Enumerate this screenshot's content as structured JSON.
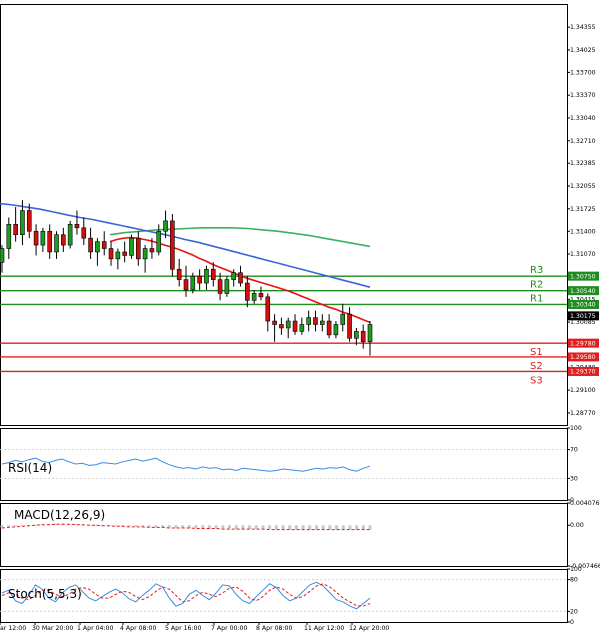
{
  "chart_data": [
    {
      "type": "candlestick",
      "ylim": [
        1.28595,
        1.3469
      ],
      "y_ticks": [
        "1.34355",
        "1.34025",
        "1.33700",
        "1.33370",
        "1.33040",
        "1.32710",
        "1.32385",
        "1.32055",
        "1.31725",
        "1.31400",
        "1.31070",
        "1.30415",
        "1.30085",
        "1.29430",
        "1.29100",
        "1.28770"
      ],
      "candles": [
        [
          1.3095,
          1.312,
          1.308,
          1.3115
        ],
        [
          1.3115,
          1.316,
          1.31,
          1.315
        ],
        [
          1.315,
          1.3175,
          1.3125,
          1.3135
        ],
        [
          1.3135,
          1.3185,
          1.312,
          1.317
        ],
        [
          1.317,
          1.318,
          1.313,
          1.314
        ],
        [
          1.314,
          1.315,
          1.3105,
          1.312
        ],
        [
          1.312,
          1.3145,
          1.311,
          1.314
        ],
        [
          1.314,
          1.315,
          1.31,
          1.311
        ],
        [
          1.311,
          1.314,
          1.31,
          1.3135
        ],
        [
          1.3135,
          1.3145,
          1.311,
          1.312
        ],
        [
          1.312,
          1.3155,
          1.3115,
          1.315
        ],
        [
          1.315,
          1.317,
          1.3135,
          1.3145
        ],
        [
          1.3145,
          1.316,
          1.312,
          1.313
        ],
        [
          1.313,
          1.3145,
          1.31,
          1.311
        ],
        [
          1.311,
          1.313,
          1.309,
          1.3125
        ],
        [
          1.3125,
          1.314,
          1.3105,
          1.3115
        ],
        [
          1.3115,
          1.3125,
          1.309,
          1.31
        ],
        [
          1.31,
          1.3115,
          1.3085,
          1.311
        ],
        [
          1.311,
          1.3125,
          1.3095,
          1.3105
        ],
        [
          1.3105,
          1.3135,
          1.31,
          1.313
        ],
        [
          1.313,
          1.314,
          1.309,
          1.31
        ],
        [
          1.31,
          1.312,
          1.308,
          1.3115
        ],
        [
          1.3115,
          1.313,
          1.31,
          1.311
        ],
        [
          1.311,
          1.315,
          1.3105,
          1.314
        ],
        [
          1.314,
          1.317,
          1.313,
          1.3155
        ],
        [
          1.3155,
          1.3165,
          1.3075,
          1.3085
        ],
        [
          1.3085,
          1.31,
          1.306,
          1.307
        ],
        [
          1.307,
          1.309,
          1.3045,
          1.3055
        ],
        [
          1.3055,
          1.308,
          1.305,
          1.3075
        ],
        [
          1.3075,
          1.3085,
          1.3055,
          1.3065
        ],
        [
          1.3065,
          1.309,
          1.3055,
          1.3085
        ],
        [
          1.3085,
          1.3095,
          1.306,
          1.307
        ],
        [
          1.307,
          1.308,
          1.304,
          1.305
        ],
        [
          1.305,
          1.3075,
          1.3045,
          1.307
        ],
        [
          1.307,
          1.3085,
          1.306,
          1.308
        ],
        [
          1.308,
          1.309,
          1.306,
          1.3065
        ],
        [
          1.3065,
          1.3075,
          1.303,
          1.304
        ],
        [
          1.304,
          1.3055,
          1.3035,
          1.305
        ],
        [
          1.305,
          1.306,
          1.304,
          1.3045
        ],
        [
          1.3045,
          1.305,
          1.2995,
          1.301
        ],
        [
          1.301,
          1.302,
          1.298,
          1.3005
        ],
        [
          1.3005,
          1.3015,
          1.299,
          1.3
        ],
        [
          1.3,
          1.3015,
          1.2985,
          1.301
        ],
        [
          1.301,
          1.302,
          1.299,
          1.2995
        ],
        [
          1.2995,
          1.3015,
          1.299,
          1.3005
        ],
        [
          1.3005,
          1.3025,
          1.2995,
          1.3015
        ],
        [
          1.3015,
          1.3025,
          1.2995,
          1.3005
        ],
        [
          1.3005,
          1.302,
          1.2995,
          1.301
        ],
        [
          1.301,
          1.302,
          1.2985,
          1.299
        ],
        [
          1.299,
          1.301,
          1.2985,
          1.3005
        ],
        [
          1.3005,
          1.3035,
          1.2995,
          1.302
        ],
        [
          1.302,
          1.303,
          1.298,
          1.2985
        ],
        [
          1.2985,
          1.3,
          1.2975,
          1.2995
        ],
        [
          1.2995,
          1.3005,
          1.297,
          1.298
        ],
        [
          1.298,
          1.301,
          1.296,
          1.3005
        ]
      ],
      "ma_red": [
        1.3125,
        1.3128,
        1.313,
        1.3131,
        1.313,
        1.3128,
        1.3126,
        1.3123,
        1.312,
        1.3117,
        1.3114,
        1.311,
        1.3106,
        1.3101,
        1.3097,
        1.3092,
        1.3088,
        1.3084,
        1.308,
        1.3076,
        1.3072,
        1.3069,
        1.3066,
        1.3063,
        1.306,
        1.3057,
        1.3054,
        1.305,
        1.3046,
        1.3042,
        1.3038,
        1.3034,
        1.303,
        1.3027,
        1.3023,
        1.302,
        1.3016,
        1.3012,
        1.3008
      ],
      "ma_blue": [
        1.318,
        1.3178,
        1.3175,
        1.3172,
        1.3168,
        1.3164,
        1.316,
        1.3157,
        1.3153,
        1.3149,
        1.3145,
        1.3141,
        1.3137,
        1.3133,
        1.3128,
        1.3124,
        1.3119,
        1.3114,
        1.3109,
        1.3104,
        1.3099,
        1.3094,
        1.3089,
        1.3084,
        1.3079,
        1.3074,
        1.3069,
        1.3064,
        1.3059
      ],
      "ma_green": [
        1.3135,
        1.3138,
        1.314,
        1.3142,
        1.3143,
        1.3144,
        1.3145,
        1.3145,
        1.3145,
        1.3144,
        1.3142,
        1.314,
        1.3137,
        1.3134,
        1.313,
        1.3126,
        1.3122,
        1.3118
      ],
      "levels": [
        {
          "name": "R3",
          "value": "1.30750",
          "color": "#1e8c1e"
        },
        {
          "name": "R2",
          "value": "1.30540",
          "color": "#1e8c1e"
        },
        {
          "name": "R1",
          "value": "1.30340",
          "color": "#1e8c1e"
        },
        {
          "name": "S1",
          "value": "1.29780",
          "color": "#e02020"
        },
        {
          "name": "S2",
          "value": "1.29580",
          "color": "#e02020"
        },
        {
          "name": "S3",
          "value": "1.29370",
          "color": "#e02020"
        }
      ],
      "current_price": "1.30175"
    },
    {
      "type": "line",
      "title": "RSI(14)",
      "ylim": [
        0,
        100
      ],
      "y_ticks": [
        "100",
        "70",
        "30",
        "0"
      ],
      "values": [
        50,
        52,
        55,
        53,
        56,
        58,
        54,
        52,
        55,
        57,
        53,
        50,
        51,
        48,
        49,
        52,
        51,
        50,
        53,
        55,
        57,
        54,
        56,
        58,
        53,
        49,
        46,
        44,
        45,
        43,
        46,
        44,
        45,
        42,
        43,
        41,
        44,
        43,
        42,
        41,
        40,
        41,
        43,
        42,
        41,
        40,
        42,
        44,
        43,
        45,
        44,
        46,
        42,
        40,
        44,
        47
      ]
    },
    {
      "type": "bar",
      "title": "MACD(12,26,9)",
      "ylim": [
        -0.007466,
        0.004076
      ],
      "y_ticks": [
        "0.004076",
        "0.00",
        "-0.007466"
      ],
      "values": [
        -0.0004,
        -0.0003,
        -0.0002,
        -0.0001,
        0.0,
        0.0001,
        0.0002,
        0.0002,
        0.0003,
        0.0003,
        0.0002,
        0.0002,
        0.0001,
        0.0001,
        0.0,
        0.0,
        -0.0001,
        -0.0001,
        -0.0002,
        -0.0002,
        -0.0003,
        -0.0003,
        -0.0003,
        -0.0004,
        -0.0004,
        -0.0004,
        -0.0005,
        -0.0005,
        -0.0005,
        -0.0005,
        -0.0006,
        -0.0006,
        -0.0006,
        -0.0006,
        -0.0006,
        -0.0007,
        -0.0007,
        -0.0007,
        -0.0007,
        -0.0007,
        -0.0007,
        -0.0008,
        -0.0008,
        -0.0008,
        -0.0008,
        -0.0008,
        -0.0008,
        -0.0008,
        -0.0008,
        -0.0008,
        -0.0008,
        -0.0008,
        -0.0008,
        -0.0008,
        -0.0008,
        -0.0008
      ],
      "signal": [
        -0.0005,
        -0.0004,
        -0.0003,
        -0.0002,
        -0.0001,
        0.0,
        0.0001,
        0.0001,
        0.0002,
        0.0002,
        0.0002,
        0.0001,
        0.0001,
        0.0,
        0.0,
        -0.0001,
        -0.0001,
        -0.0002,
        -0.0002,
        -0.0003,
        -0.0003,
        -0.0003,
        -0.0004,
        -0.0004,
        -0.0004,
        -0.0005,
        -0.0005,
        -0.0005,
        -0.0005,
        -0.0006,
        -0.0006,
        -0.0006,
        -0.0006,
        -0.0007,
        -0.0007,
        -0.0007,
        -0.0007,
        -0.0007,
        -0.0007,
        -0.0007,
        -0.0008,
        -0.0008,
        -0.0008,
        -0.0008,
        -0.0008,
        -0.0008,
        -0.0008,
        -0.0008,
        -0.0008,
        -0.0008,
        -0.0008,
        -0.0008,
        -0.0008,
        -0.0008,
        -0.0008,
        -0.0008
      ]
    },
    {
      "type": "line",
      "title": "Stoch(5,5,3)",
      "ylim": [
        0,
        100
      ],
      "y_ticks": [
        "100",
        "80",
        "20",
        "0"
      ],
      "k": [
        55,
        60,
        40,
        35,
        50,
        70,
        62,
        45,
        38,
        55,
        65,
        70,
        58,
        45,
        40,
        48,
        56,
        62,
        55,
        44,
        38,
        50,
        60,
        72,
        66,
        45,
        30,
        35,
        52,
        60,
        50,
        42,
        55,
        70,
        68,
        52,
        40,
        35,
        48,
        60,
        72,
        65,
        50,
        40,
        45,
        58,
        70,
        75,
        68,
        55,
        42,
        38,
        30,
        25,
        35,
        45
      ],
      "d": [
        50,
        55,
        52,
        45,
        42,
        50,
        60,
        60,
        52,
        48,
        52,
        62,
        65,
        62,
        52,
        45,
        45,
        52,
        58,
        56,
        48,
        42,
        48,
        58,
        66,
        62,
        50,
        38,
        40,
        50,
        56,
        52,
        48,
        55,
        64,
        66,
        58,
        45,
        40,
        48,
        60,
        66,
        62,
        52,
        45,
        48,
        58,
        68,
        72,
        66,
        56,
        45,
        38,
        31,
        30,
        35
      ]
    }
  ],
  "x_ticks": [
    "ar 12:00",
    "30 Mar 20:00",
    "1 Apr 04:00",
    "4 Apr 08:00",
    "5 Apr 16:00",
    "7 Apr 00:00",
    "8 Apr 08:00",
    "11 Apr 12:00",
    "12 Apr 20:00"
  ],
  "colors": {
    "bull": "#1e9c1e",
    "bear": "#d01010",
    "ma_red": "#e81010",
    "ma_blue": "#3c64d8",
    "ma_green": "#3cb060",
    "rsi": "#3c8ce0",
    "macd_bar": "#c8c8c8",
    "macd_signal": "#e02020",
    "stoch_k": "#3c8ce0",
    "stoch_d": "#e02020",
    "grid": "#d0d0d0",
    "axis": "#000000"
  }
}
